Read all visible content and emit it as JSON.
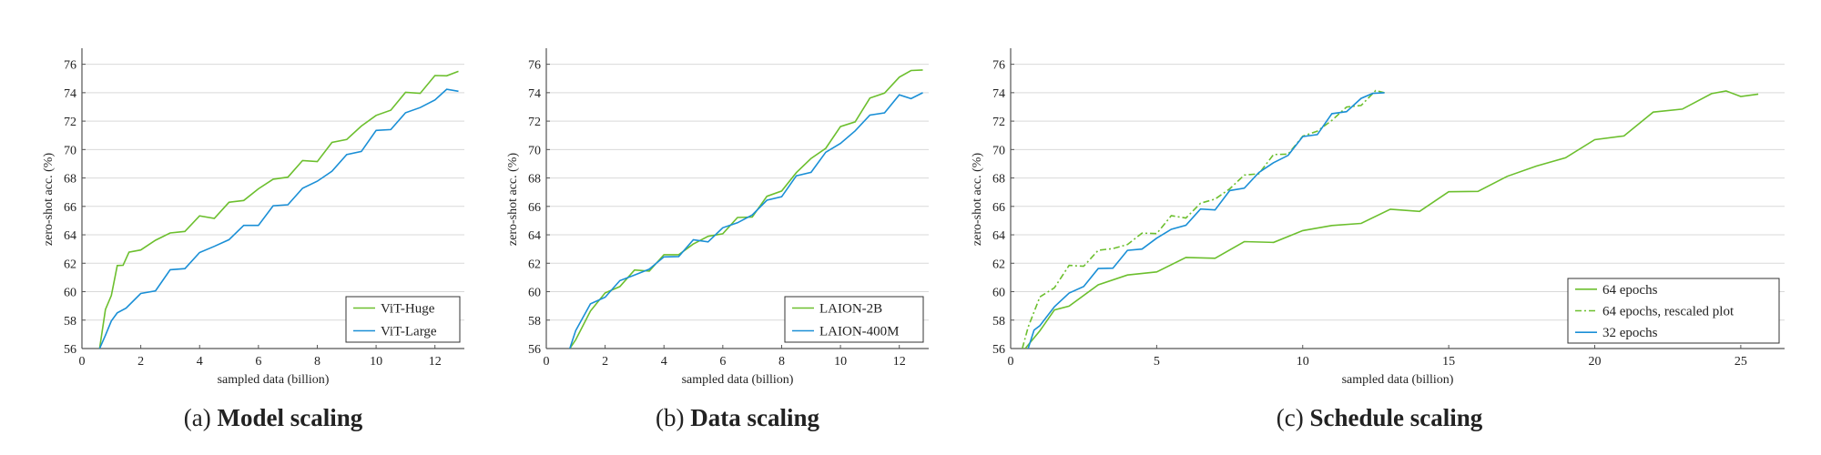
{
  "captions": [
    {
      "prefix": "(a)",
      "title": "Model scaling"
    },
    {
      "prefix": "(b)",
      "title": "Data scaling"
    },
    {
      "prefix": "(c)",
      "title": "Schedule scaling"
    }
  ],
  "colors": {
    "green": "#6cbf2e",
    "blue": "#1a8fd6",
    "axis": "#555555",
    "grid": "#d9d9d9"
  },
  "chart_data": [
    {
      "type": "line",
      "title": "",
      "xlabel": "sampled data (billion)",
      "ylabel": "zero-shot acc. (%)",
      "xlim": [
        0,
        13
      ],
      "ylim": [
        56,
        77
      ],
      "xticks": [
        0,
        2,
        4,
        6,
        8,
        10,
        12
      ],
      "yticks": [
        56,
        58,
        60,
        62,
        64,
        66,
        68,
        70,
        72,
        74,
        76
      ],
      "grid": "horizontal",
      "legend_position": "bottom-right",
      "series": [
        {
          "name": "ViT-Huge",
          "color": "green",
          "style": "solid",
          "x": [
            0.6,
            0.8,
            1.0,
            1.2,
            1.4,
            1.6,
            2.0,
            2.5,
            3.0,
            3.5,
            4.0,
            4.5,
            5.0,
            5.5,
            6.0,
            6.5,
            7.0,
            7.5,
            8.0,
            8.5,
            9.0,
            9.5,
            10.0,
            10.5,
            11.0,
            11.5,
            12.0,
            12.4,
            12.8
          ],
          "y": [
            56.0,
            58.6,
            60.0,
            61.5,
            62.2,
            62.5,
            63.1,
            63.6,
            64.0,
            64.5,
            65.0,
            65.5,
            66.0,
            66.6,
            67.2,
            67.8,
            68.3,
            68.9,
            69.5,
            70.2,
            70.9,
            71.6,
            72.3,
            73.0,
            73.7,
            74.3,
            74.9,
            75.4,
            75.5
          ]
        },
        {
          "name": "ViT-Large",
          "color": "blue",
          "style": "solid",
          "x": [
            0.6,
            0.8,
            1.0,
            1.2,
            1.5,
            2.0,
            2.5,
            3.0,
            3.5,
            4.0,
            4.5,
            5.0,
            5.5,
            6.0,
            6.5,
            7.0,
            7.5,
            8.0,
            8.5,
            9.0,
            9.5,
            10.0,
            10.5,
            11.0,
            11.5,
            12.0,
            12.4,
            12.8
          ],
          "y": [
            56.0,
            57.2,
            57.8,
            58.5,
            59.0,
            59.6,
            60.4,
            61.2,
            61.9,
            62.6,
            63.2,
            63.8,
            64.4,
            65.0,
            65.7,
            66.4,
            67.1,
            67.8,
            68.6,
            69.4,
            70.2,
            71.0,
            71.7,
            72.4,
            73.0,
            73.6,
            74.0,
            74.1
          ]
        }
      ]
    },
    {
      "type": "line",
      "title": "",
      "xlabel": "sampled data (billion)",
      "ylabel": "zero-shot acc. (%)",
      "xlim": [
        0,
        13
      ],
      "ylim": [
        56,
        77
      ],
      "xticks": [
        0,
        2,
        4,
        6,
        8,
        10,
        12
      ],
      "yticks": [
        56,
        58,
        60,
        62,
        64,
        66,
        68,
        70,
        72,
        74,
        76
      ],
      "grid": "horizontal",
      "legend_position": "bottom-right",
      "series": [
        {
          "name": "LAION-2B",
          "color": "green",
          "style": "solid",
          "x": [
            0.8,
            1.0,
            1.5,
            2.0,
            2.5,
            3.0,
            3.5,
            4.0,
            4.5,
            5.0,
            5.5,
            6.0,
            6.5,
            7.0,
            7.5,
            8.0,
            8.5,
            9.0,
            9.5,
            10.0,
            10.5,
            11.0,
            11.5,
            12.0,
            12.4,
            12.8
          ],
          "y": [
            56.0,
            56.8,
            58.6,
            59.8,
            60.6,
            61.2,
            61.8,
            62.3,
            62.8,
            63.3,
            63.8,
            64.3,
            64.9,
            65.6,
            66.4,
            67.3,
            68.3,
            69.3,
            70.3,
            71.3,
            72.3,
            73.3,
            74.2,
            75.0,
            75.5,
            75.6
          ]
        },
        {
          "name": "LAION-400M",
          "color": "blue",
          "style": "solid",
          "x": [
            0.8,
            1.0,
            1.5,
            2.0,
            2.5,
            3.0,
            3.5,
            4.0,
            4.5,
            5.0,
            5.5,
            6.0,
            6.5,
            7.0,
            7.5,
            8.0,
            8.5,
            9.0,
            9.5,
            10.0,
            10.5,
            11.0,
            11.5,
            12.0,
            12.4,
            12.8
          ],
          "y": [
            56.0,
            57.6,
            58.8,
            59.9,
            60.6,
            61.2,
            61.7,
            62.2,
            62.8,
            63.3,
            63.8,
            64.3,
            64.9,
            65.5,
            66.2,
            67.0,
            67.8,
            68.7,
            69.6,
            70.5,
            71.4,
            72.2,
            72.9,
            73.5,
            73.9,
            74.0
          ]
        }
      ]
    },
    {
      "type": "line",
      "title": "",
      "xlabel": "sampled data (billion)",
      "ylabel": "zero-shot acc. (%)",
      "xlim": [
        0,
        26.5
      ],
      "ylim": [
        56,
        77
      ],
      "xticks": [
        0,
        5,
        10,
        15,
        20,
        25
      ],
      "yticks": [
        56,
        58,
        60,
        62,
        64,
        66,
        68,
        70,
        72,
        74,
        76
      ],
      "grid": "horizontal",
      "legend_position": "bottom-right",
      "series": [
        {
          "name": "64 epochs",
          "color": "green",
          "style": "solid",
          "x": [
            0.5,
            1.0,
            1.5,
            2.0,
            3.0,
            4.0,
            5.0,
            6.0,
            7.0,
            8.0,
            9.0,
            10.0,
            11.0,
            12.0,
            13.0,
            14.0,
            15.0,
            16.0,
            17.0,
            18.0,
            19.0,
            20.0,
            21.0,
            22.0,
            23.0,
            24.0,
            24.5,
            25.0,
            25.6
          ],
          "y": [
            56.0,
            57.6,
            58.4,
            59.2,
            60.4,
            61.1,
            61.6,
            62.1,
            62.7,
            63.2,
            63.7,
            64.2,
            64.6,
            65.0,
            65.5,
            66.0,
            66.7,
            67.3,
            68.0,
            68.8,
            69.6,
            70.4,
            71.3,
            72.3,
            73.1,
            73.8,
            74.1,
            73.9,
            73.9
          ]
        },
        {
          "name": "64 epochs, rescaled plot",
          "color": "green",
          "style": "dashdot",
          "x": [
            0.4,
            0.6,
            1.0,
            1.5,
            2.0,
            2.5,
            3.0,
            3.5,
            4.0,
            4.5,
            5.0,
            5.5,
            6.0,
            6.5,
            7.0,
            7.5,
            8.0,
            8.5,
            9.0,
            9.5,
            10.0,
            10.5,
            11.0,
            11.5,
            12.0,
            12.5,
            12.8
          ],
          "y": [
            56.0,
            57.6,
            59.4,
            60.6,
            61.5,
            62.1,
            62.7,
            63.1,
            63.4,
            63.9,
            64.4,
            65.0,
            65.5,
            66.0,
            66.6,
            67.3,
            68.0,
            68.6,
            69.3,
            70.0,
            70.7,
            71.4,
            72.1,
            72.8,
            73.4,
            73.8,
            74.0
          ]
        },
        {
          "name": "32 epochs",
          "color": "blue",
          "style": "solid",
          "x": [
            0.6,
            0.8,
            1.0,
            1.5,
            2.0,
            2.5,
            3.0,
            3.5,
            4.0,
            4.5,
            5.0,
            5.5,
            6.0,
            6.5,
            7.0,
            7.5,
            8.0,
            8.5,
            9.0,
            9.5,
            10.0,
            10.5,
            11.0,
            11.5,
            12.0,
            12.4,
            12.8
          ],
          "y": [
            56.0,
            57.0,
            57.8,
            58.9,
            59.8,
            60.6,
            61.3,
            62.0,
            62.6,
            63.2,
            63.7,
            64.3,
            64.9,
            65.5,
            66.1,
            66.8,
            67.5,
            68.3,
            69.0,
            69.8,
            70.6,
            71.4,
            72.2,
            72.9,
            73.5,
            73.9,
            74.0
          ]
        }
      ]
    }
  ]
}
